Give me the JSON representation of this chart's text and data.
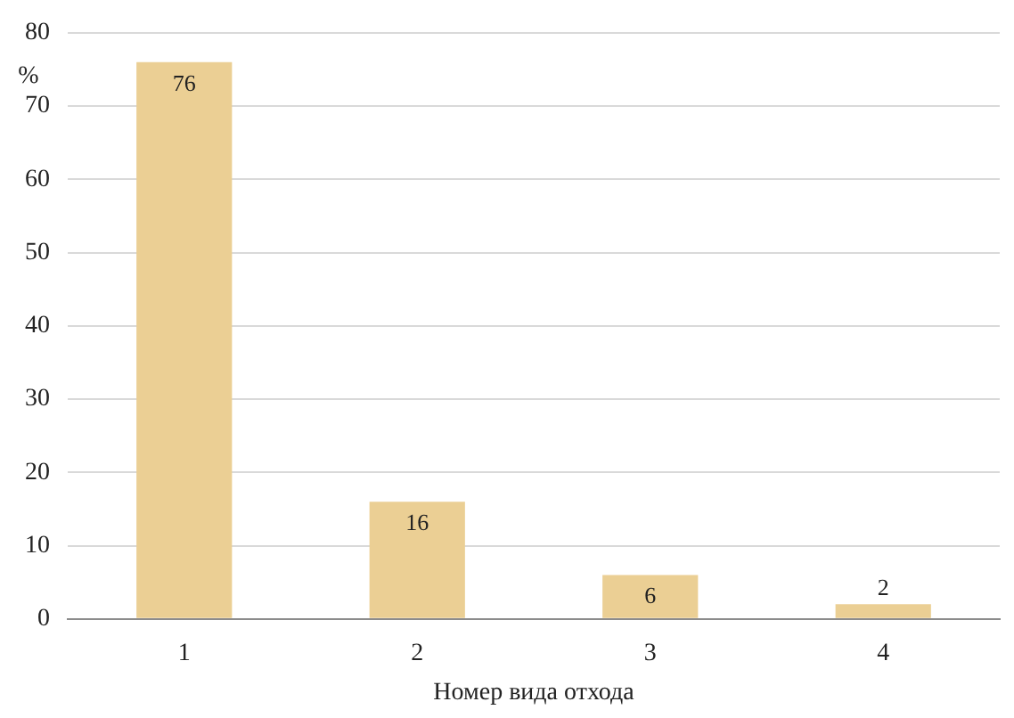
{
  "chart_data": {
    "type": "bar",
    "xlabel": "Номер вида отхода",
    "ylabel": "%",
    "categories": [
      "1",
      "2",
      "3",
      "4"
    ],
    "values": [
      76,
      16,
      6,
      2
    ],
    "color": "#ebcf94",
    "ylim": [
      0,
      80
    ],
    "yticks": [
      0,
      10,
      20,
      30,
      40,
      50,
      60,
      70,
      80
    ],
    "grid": "y",
    "data_labels": true,
    "legend": false
  }
}
